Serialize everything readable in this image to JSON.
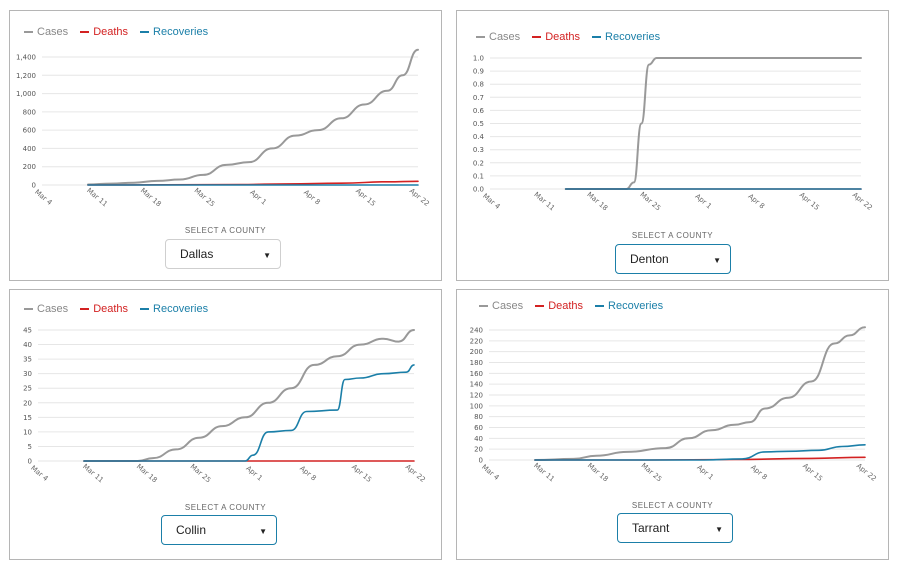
{
  "colors": {
    "cases": "#999999",
    "deaths": "#d32222",
    "recoveries": "#1b7fa8",
    "grid": "#e6e6e6"
  },
  "select_label": "SELECT A COUNTY",
  "chart_data": [
    {
      "type": "line",
      "county": "Dallas",
      "legend": [
        "Cases",
        "Deaths",
        "Recoveries"
      ],
      "legend_position": "top-left",
      "grid": true,
      "x_ticks": [
        "Mar 4",
        "Mar 11",
        "Mar 18",
        "Mar 25",
        "Apr 1",
        "Apr 8",
        "Apr 15",
        "Apr 22"
      ],
      "y_ticks": [
        "0",
        "200",
        "400",
        "600",
        "800",
        "1,000",
        "1,200",
        "1,400"
      ],
      "ylim": [
        0,
        1400
      ],
      "xlim": [
        "2020-03-04",
        "2020-04-22"
      ],
      "series": [
        {
          "name": "Cases",
          "x": [
            "2020-03-10",
            "2020-03-13",
            "2020-03-16",
            "2020-03-19",
            "2020-03-22",
            "2020-03-25",
            "2020-03-28",
            "2020-03-31",
            "2020-04-03",
            "2020-04-06",
            "2020-04-09",
            "2020-04-12",
            "2020-04-15",
            "2020-04-18",
            "2020-04-20",
            "2020-04-22"
          ],
          "values": [
            5,
            15,
            25,
            45,
            60,
            110,
            220,
            250,
            400,
            540,
            600,
            730,
            880,
            1030,
            1200,
            1480
          ]
        },
        {
          "name": "Deaths",
          "x": [
            "2020-03-10",
            "2020-03-20",
            "2020-03-30",
            "2020-04-05",
            "2020-04-12",
            "2020-04-18",
            "2020-04-22"
          ],
          "values": [
            0,
            2,
            5,
            12,
            20,
            35,
            40
          ]
        },
        {
          "name": "Recoveries",
          "x": [
            "2020-03-10",
            "2020-04-22"
          ],
          "values": [
            0,
            0
          ]
        }
      ]
    },
    {
      "type": "line",
      "county": "Denton",
      "legend": [
        "Cases",
        "Deaths",
        "Recoveries"
      ],
      "legend_position": "top-left",
      "grid": true,
      "x_ticks": [
        "Mar 4",
        "Mar 11",
        "Mar 18",
        "Mar 25",
        "Apr 1",
        "Apr 8",
        "Apr 15",
        "Apr 22"
      ],
      "y_ticks": [
        "0.0",
        "0.1",
        "0.2",
        "0.3",
        "0.4",
        "0.5",
        "0.6",
        "0.7",
        "0.8",
        "0.9",
        "1.0"
      ],
      "ylim": [
        0,
        1
      ],
      "xlim": [
        "2020-03-04",
        "2020-04-22"
      ],
      "series": [
        {
          "name": "Cases",
          "x": [
            "2020-03-14",
            "2020-03-22",
            "2020-03-23",
            "2020-03-24",
            "2020-03-25",
            "2020-03-26",
            "2020-04-22"
          ],
          "values": [
            0,
            0,
            0.05,
            0.5,
            0.95,
            1,
            1
          ]
        },
        {
          "name": "Deaths",
          "x": [
            "2020-03-14",
            "2020-04-22"
          ],
          "values": [
            0,
            0
          ]
        },
        {
          "name": "Recoveries",
          "x": [
            "2020-03-14",
            "2020-04-22"
          ],
          "values": [
            0,
            0
          ]
        }
      ]
    },
    {
      "type": "line",
      "county": "Collin",
      "legend": [
        "Cases",
        "Deaths",
        "Recoveries"
      ],
      "legend_position": "top-left",
      "grid": true,
      "x_ticks": [
        "Mar 4",
        "Mar 11",
        "Mar 18",
        "Mar 25",
        "Apr 1",
        "Apr 8",
        "Apr 15",
        "Apr 22"
      ],
      "y_ticks": [
        "0",
        "5",
        "10",
        "15",
        "20",
        "25",
        "30",
        "35",
        "40",
        "45"
      ],
      "ylim": [
        0,
        45
      ],
      "xlim": [
        "2020-03-04",
        "2020-04-22"
      ],
      "series": [
        {
          "name": "Cases",
          "x": [
            "2020-03-10",
            "2020-03-17",
            "2020-03-19",
            "2020-03-22",
            "2020-03-25",
            "2020-03-28",
            "2020-03-31",
            "2020-04-03",
            "2020-04-06",
            "2020-04-09",
            "2020-04-12",
            "2020-04-15",
            "2020-04-18",
            "2020-04-20",
            "2020-04-22"
          ],
          "values": [
            0,
            0,
            1,
            4,
            8,
            12,
            15,
            20,
            25,
            33,
            36,
            40,
            42,
            41,
            45
          ]
        },
        {
          "name": "Deaths",
          "x": [
            "2020-03-10",
            "2020-04-22"
          ],
          "values": [
            0,
            0
          ]
        },
        {
          "name": "Recoveries",
          "x": [
            "2020-03-10",
            "2020-03-31",
            "2020-04-01",
            "2020-04-03",
            "2020-04-06",
            "2020-04-08",
            "2020-04-12",
            "2020-04-13",
            "2020-04-15",
            "2020-04-18",
            "2020-04-21",
            "2020-04-22"
          ],
          "values": [
            0,
            0,
            2,
            10,
            10.5,
            17,
            17.5,
            28,
            28.5,
            30,
            30.5,
            33
          ]
        }
      ]
    },
    {
      "type": "line",
      "county": "Tarrant",
      "legend": [
        "Cases",
        "Deaths",
        "Recoveries"
      ],
      "legend_position": "top-left",
      "grid": true,
      "x_ticks": [
        "Mar 4",
        "Mar 11",
        "Mar 18",
        "Mar 25",
        "Apr 1",
        "Apr 8",
        "Apr 15",
        "Apr 22"
      ],
      "y_ticks": [
        "0",
        "20",
        "40",
        "60",
        "80",
        "100",
        "120",
        "140",
        "160",
        "180",
        "200",
        "220",
        "240"
      ],
      "ylim": [
        0,
        240
      ],
      "xlim": [
        "2020-03-04",
        "2020-04-22"
      ],
      "series": [
        {
          "name": "Cases",
          "x": [
            "2020-03-10",
            "2020-03-15",
            "2020-03-18",
            "2020-03-22",
            "2020-03-27",
            "2020-03-30",
            "2020-04-02",
            "2020-04-05",
            "2020-04-07",
            "2020-04-09",
            "2020-04-12",
            "2020-04-15",
            "2020-04-18",
            "2020-04-20",
            "2020-04-22"
          ],
          "values": [
            0,
            2,
            8,
            15,
            22,
            40,
            55,
            65,
            70,
            95,
            115,
            145,
            215,
            230,
            245
          ]
        },
        {
          "name": "Deaths",
          "x": [
            "2020-03-10",
            "2020-03-25",
            "2020-04-05",
            "2020-04-15",
            "2020-04-22"
          ],
          "values": [
            0,
            0,
            1,
            3,
            5
          ]
        },
        {
          "name": "Recoveries",
          "x": [
            "2020-03-10",
            "2020-04-01",
            "2020-04-06",
            "2020-04-09",
            "2020-04-12",
            "2020-04-16",
            "2020-04-19",
            "2020-04-22"
          ],
          "values": [
            0,
            0,
            2,
            15,
            16,
            18,
            25,
            28
          ]
        }
      ]
    }
  ]
}
